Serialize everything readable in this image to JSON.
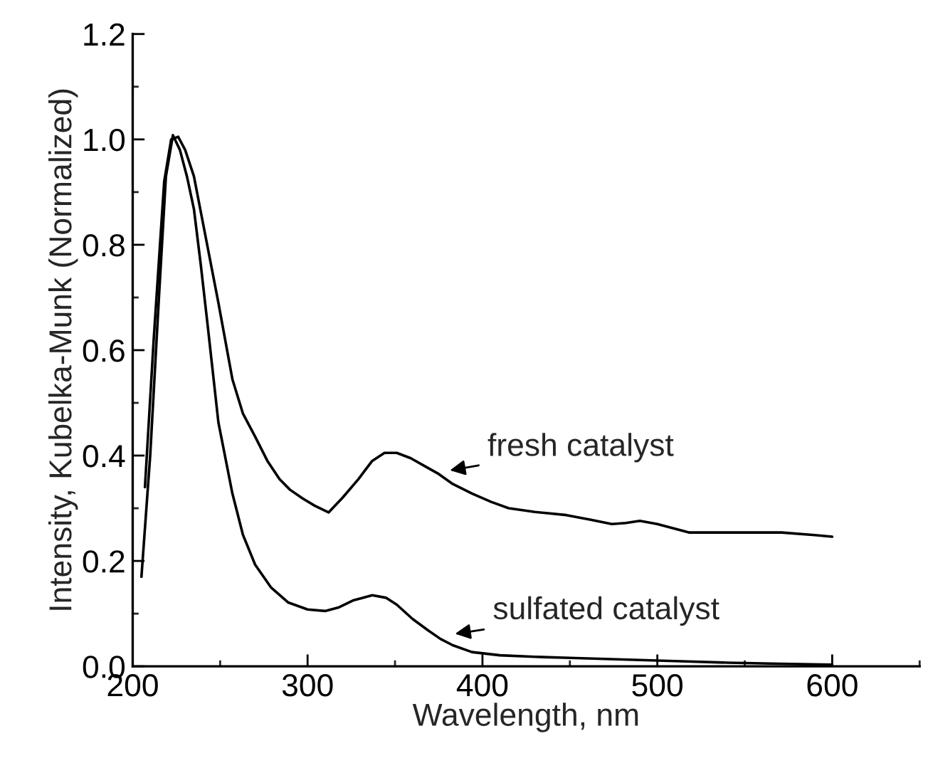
{
  "chart_data": {
    "type": "line",
    "xlabel": "Wavelength, nm",
    "ylabel": "Intensity, Kubelka-Munk (Normalized)",
    "xlim": [
      200,
      650
    ],
    "xticks": [
      200,
      300,
      400,
      500,
      600
    ],
    "ylim": [
      0,
      1.2
    ],
    "yticks": [
      {
        "value": 0,
        "label": "0.0"
      },
      {
        "value": 0.2,
        "label": "0.2"
      },
      {
        "value": 0.4,
        "label": "0.4"
      },
      {
        "value": 0.6,
        "label": "0.6"
      },
      {
        "value": 0.8,
        "label": "0.8"
      },
      {
        "value": 1.0,
        "label": "1.0"
      },
      {
        "value": 1.2,
        "label": "1.2"
      }
    ],
    "grid": false,
    "legend": false,
    "marker": "none",
    "line_style": "solid",
    "series": [
      {
        "color": "#000000",
        "x": [
          207,
          212,
          218,
          222,
          226,
          230,
          235,
          242,
          249,
          257,
          263,
          270,
          277,
          284,
          290,
          297,
          304,
          312,
          320,
          329,
          337,
          344,
          351,
          359,
          367,
          375,
          383,
          394,
          405,
          415,
          430,
          448,
          462,
          474,
          482,
          490,
          500,
          518,
          540,
          571,
          590,
          600
        ],
        "values": [
          0.34,
          0.62,
          0.92,
          1.0,
          1.005,
          0.98,
          0.93,
          0.81,
          0.69,
          0.545,
          0.48,
          0.436,
          0.39,
          0.355,
          0.335,
          0.319,
          0.305,
          0.292,
          0.32,
          0.355,
          0.39,
          0.405,
          0.405,
          0.395,
          0.38,
          0.365,
          0.346,
          0.328,
          0.312,
          0.3,
          0.293,
          0.287,
          0.278,
          0.27,
          0.272,
          0.276,
          0.27,
          0.254,
          0.254,
          0.254,
          0.249,
          0.246
        ]
      },
      {
        "color": "#000000",
        "x": [
          205,
          210,
          215,
          219,
          223,
          227,
          231,
          235,
          239,
          243,
          249,
          257,
          263,
          270,
          279,
          289,
          300,
          310,
          318,
          326,
          337,
          345,
          351,
          360,
          369,
          376,
          383,
          394,
          410,
          430,
          450,
          480,
          510,
          540,
          570,
          600
        ],
        "values": [
          0.17,
          0.4,
          0.7,
          0.93,
          1.008,
          0.98,
          0.93,
          0.868,
          0.76,
          0.643,
          0.463,
          0.328,
          0.25,
          0.193,
          0.15,
          0.121,
          0.108,
          0.105,
          0.112,
          0.125,
          0.135,
          0.13,
          0.117,
          0.09,
          0.068,
          0.052,
          0.04,
          0.027,
          0.021,
          0.018,
          0.016,
          0.013,
          0.01,
          0.007,
          0.005,
          0.003
        ]
      }
    ],
    "annotations": [
      {
        "text": "fresh catalyst",
        "x": 378,
        "y": 0.37
      },
      {
        "text": "sulfated catalyst",
        "x": 381,
        "y": 0.06
      }
    ]
  }
}
